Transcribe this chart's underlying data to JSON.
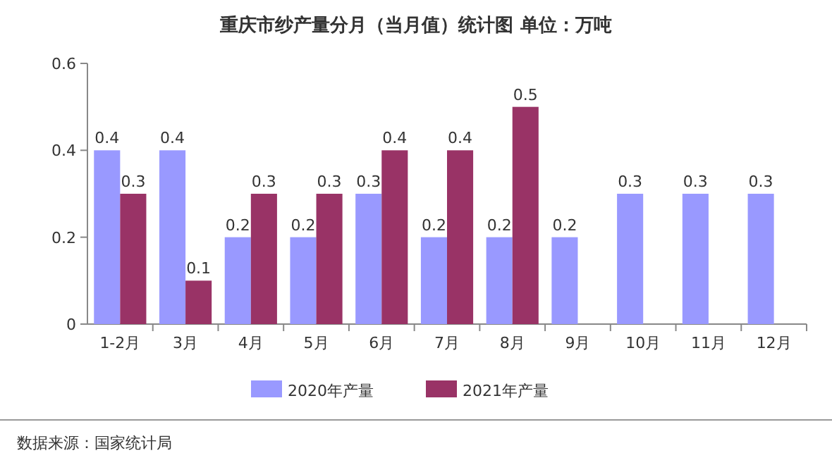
{
  "chart_data": {
    "type": "bar",
    "title": "重庆市纱产量分月（当月值）统计图 单位：万吨",
    "categories": [
      "1-2月",
      "3月",
      "4月",
      "5月",
      "6月",
      "7月",
      "8月",
      "9月",
      "10月",
      "11月",
      "12月"
    ],
    "series": [
      {
        "name": "2020年产量",
        "color": "#9999ff",
        "values": [
          0.4,
          0.4,
          0.2,
          0.2,
          0.3,
          0.2,
          0.2,
          0.2,
          0.3,
          0.3,
          0.3
        ]
      },
      {
        "name": "2021年产量",
        "color": "#993366",
        "values": [
          0.3,
          0.1,
          0.3,
          0.3,
          0.4,
          0.4,
          0.5,
          null,
          null,
          null,
          null
        ]
      }
    ],
    "ylim": [
      0,
      0.6
    ],
    "yticks": [
      0,
      0.2,
      0.4,
      0.6
    ],
    "data_labels": true,
    "legend": "bottom",
    "annotations": [
      "数据来源：国家统计局"
    ]
  }
}
